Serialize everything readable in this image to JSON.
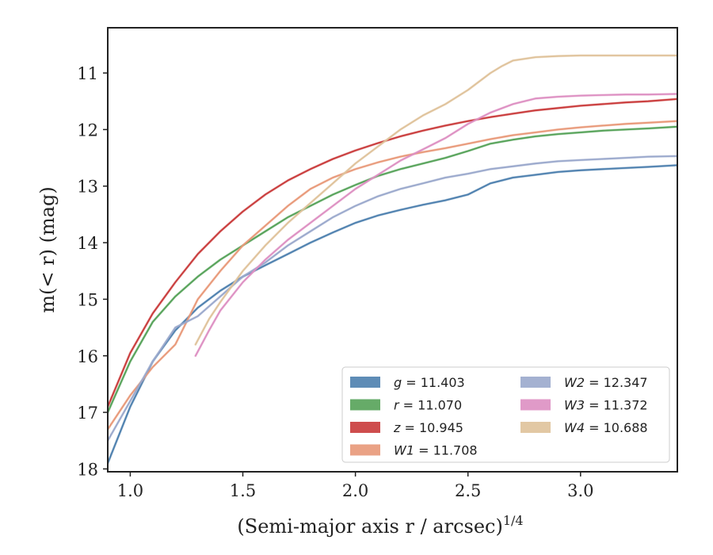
{
  "chart_data": {
    "type": "line",
    "xlabel": "(Semi-major axis r / arcsec)",
    "xlabel_exponent": "1/4",
    "ylabel": "m(< r) (mag)",
    "xlim": [
      0.9,
      3.43
    ],
    "ylim": [
      18.05,
      10.2
    ],
    "y_inverted": true,
    "x_ticks": [
      {
        "value": 1.0,
        "label": "1.0"
      },
      {
        "value": 1.5,
        "label": "1.5"
      },
      {
        "value": 2.0,
        "label": "2.0"
      },
      {
        "value": 2.5,
        "label": "2.5"
      },
      {
        "value": 3.0,
        "label": "3.0"
      }
    ],
    "y_ticks": [
      {
        "value": 11,
        "label": "11"
      },
      {
        "value": 12,
        "label": "12"
      },
      {
        "value": 13,
        "label": "13"
      },
      {
        "value": 14,
        "label": "14"
      },
      {
        "value": 15,
        "label": "15"
      },
      {
        "value": 16,
        "label": "16"
      },
      {
        "value": 17,
        "label": "17"
      },
      {
        "value": 18,
        "label": "18"
      }
    ],
    "grid": false,
    "legend_position": "lower-right",
    "legend_columns": 2,
    "series": [
      {
        "name": "g = 11.403",
        "legend_name": "g",
        "legend_value": "= 11.403",
        "color": "#4c7fae",
        "x": [
          0.9,
          1.0,
          1.1,
          1.2,
          1.3,
          1.4,
          1.5,
          1.6,
          1.7,
          1.8,
          1.9,
          2.0,
          2.1,
          2.2,
          2.3,
          2.4,
          2.5,
          2.55,
          2.6,
          2.7,
          2.8,
          2.9,
          3.0,
          3.1,
          3.2,
          3.3,
          3.43
        ],
        "y": [
          17.9,
          16.9,
          16.1,
          15.55,
          15.15,
          14.85,
          14.6,
          14.4,
          14.2,
          14.0,
          13.82,
          13.65,
          13.52,
          13.42,
          13.33,
          13.25,
          13.15,
          13.05,
          12.95,
          12.85,
          12.8,
          12.75,
          12.72,
          12.7,
          12.68,
          12.66,
          12.63
        ]
      },
      {
        "name": "r = 11.070",
        "legend_name": "r",
        "legend_value": "= 11.070",
        "color": "#55a258",
        "x": [
          0.9,
          1.0,
          1.1,
          1.2,
          1.3,
          1.4,
          1.5,
          1.6,
          1.7,
          1.8,
          1.9,
          2.0,
          2.1,
          2.2,
          2.3,
          2.4,
          2.5,
          2.6,
          2.7,
          2.8,
          2.9,
          3.0,
          3.1,
          3.2,
          3.3,
          3.43
        ],
        "y": [
          17.0,
          16.1,
          15.4,
          14.95,
          14.6,
          14.3,
          14.05,
          13.8,
          13.55,
          13.35,
          13.15,
          12.98,
          12.82,
          12.7,
          12.6,
          12.5,
          12.38,
          12.25,
          12.18,
          12.12,
          12.08,
          12.05,
          12.02,
          12.0,
          11.98,
          11.95
        ]
      },
      {
        "name": "z = 10.945",
        "legend_name": "z",
        "legend_value": "= 10.945",
        "color": "#c93a3a",
        "x": [
          0.9,
          1.0,
          1.1,
          1.2,
          1.3,
          1.4,
          1.5,
          1.6,
          1.7,
          1.8,
          1.9,
          2.0,
          2.1,
          2.2,
          2.3,
          2.4,
          2.5,
          2.6,
          2.7,
          2.8,
          2.9,
          3.0,
          3.1,
          3.2,
          3.3,
          3.43
        ],
        "y": [
          16.9,
          15.95,
          15.25,
          14.7,
          14.2,
          13.8,
          13.45,
          13.15,
          12.9,
          12.7,
          12.52,
          12.37,
          12.24,
          12.12,
          12.02,
          11.93,
          11.85,
          11.78,
          11.72,
          11.66,
          11.62,
          11.58,
          11.55,
          11.52,
          11.5,
          11.46
        ]
      },
      {
        "name": "W1 = 11.708",
        "legend_name": "W1",
        "legend_value": "= 11.708",
        "color": "#e89878",
        "x": [
          0.9,
          1.0,
          1.1,
          1.2,
          1.3,
          1.4,
          1.5,
          1.6,
          1.7,
          1.8,
          1.9,
          2.0,
          2.1,
          2.2,
          2.3,
          2.4,
          2.5,
          2.6,
          2.7,
          2.8,
          2.9,
          3.0,
          3.1,
          3.2,
          3.3,
          3.43
        ],
        "y": [
          17.3,
          16.7,
          16.2,
          15.8,
          15.0,
          14.5,
          14.05,
          13.7,
          13.35,
          13.05,
          12.85,
          12.7,
          12.58,
          12.48,
          12.4,
          12.33,
          12.25,
          12.17,
          12.1,
          12.05,
          12.0,
          11.96,
          11.93,
          11.9,
          11.88,
          11.85
        ]
      },
      {
        "name": "W2 = 12.347",
        "legend_name": "W2",
        "legend_value": "= 12.347",
        "color": "#9aa8cc",
        "x": [
          0.9,
          1.0,
          1.1,
          1.2,
          1.3,
          1.4,
          1.5,
          1.6,
          1.7,
          1.8,
          1.9,
          2.0,
          2.1,
          2.2,
          2.3,
          2.4,
          2.5,
          2.6,
          2.7,
          2.8,
          2.9,
          3.0,
          3.1,
          3.2,
          3.3,
          3.43
        ],
        "y": [
          17.5,
          16.8,
          16.1,
          15.5,
          15.3,
          14.95,
          14.6,
          14.35,
          14.05,
          13.8,
          13.55,
          13.35,
          13.18,
          13.05,
          12.95,
          12.85,
          12.78,
          12.7,
          12.65,
          12.6,
          12.56,
          12.54,
          12.52,
          12.5,
          12.48,
          12.47
        ]
      },
      {
        "name": "W3 = 11.372",
        "legend_name": "W3",
        "legend_value": "= 11.372",
        "color": "#dd8fc2",
        "x": [
          1.29,
          1.35,
          1.4,
          1.5,
          1.6,
          1.7,
          1.8,
          1.9,
          2.0,
          2.1,
          2.2,
          2.3,
          2.4,
          2.5,
          2.6,
          2.7,
          2.8,
          2.9,
          3.0,
          3.1,
          3.2,
          3.3,
          3.43
        ],
        "y": [
          16.0,
          15.55,
          15.2,
          14.7,
          14.3,
          13.95,
          13.65,
          13.35,
          13.05,
          12.8,
          12.55,
          12.35,
          12.15,
          11.9,
          11.7,
          11.55,
          11.45,
          11.42,
          11.4,
          11.39,
          11.38,
          11.38,
          11.37
        ]
      },
      {
        "name": "W4 = 10.688",
        "legend_name": "W4",
        "legend_value": "= 10.688",
        "color": "#dfc29a",
        "x": [
          1.29,
          1.35,
          1.4,
          1.5,
          1.6,
          1.7,
          1.8,
          1.9,
          2.0,
          2.1,
          2.2,
          2.3,
          2.4,
          2.5,
          2.6,
          2.65,
          2.7,
          2.8,
          2.9,
          3.0,
          3.1,
          3.2,
          3.3,
          3.43
        ],
        "y": [
          15.8,
          15.35,
          15.05,
          14.5,
          14.05,
          13.65,
          13.3,
          12.95,
          12.6,
          12.3,
          12.0,
          11.75,
          11.55,
          11.3,
          11.0,
          10.88,
          10.78,
          10.72,
          10.7,
          10.69,
          10.69,
          10.69,
          10.69,
          10.69
        ]
      }
    ]
  }
}
